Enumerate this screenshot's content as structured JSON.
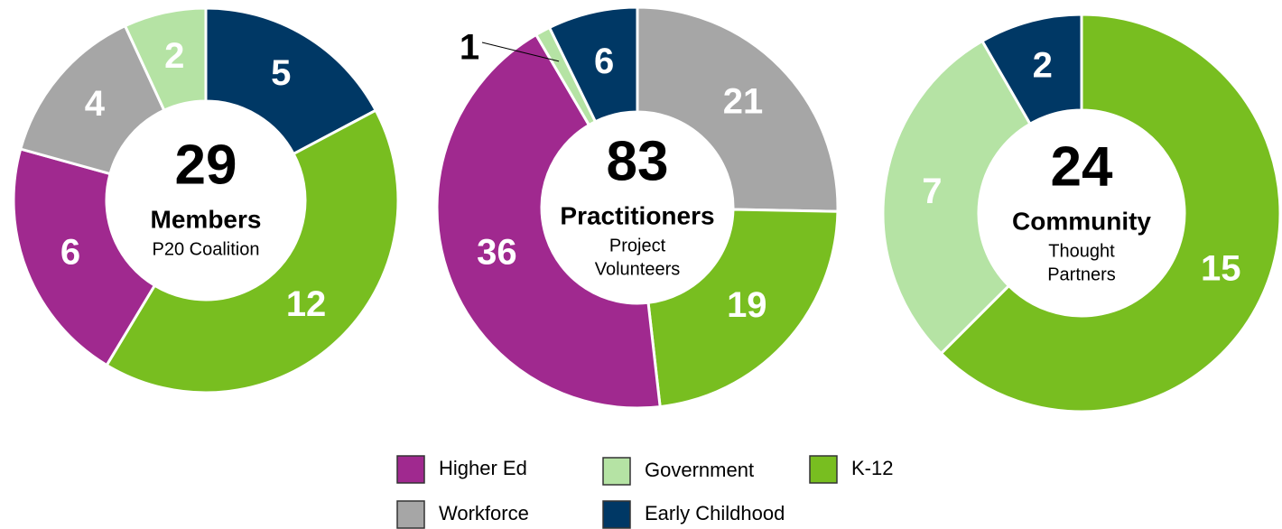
{
  "chart_data": [
    {
      "type": "donut",
      "total": 29,
      "title": "Members",
      "subtitle": [
        "P20 Coalition"
      ],
      "categories": [
        "Early Childhood",
        "K-12",
        "Higher Ed",
        "Workforce",
        "Government"
      ],
      "values": [
        5,
        12,
        6,
        4,
        2
      ],
      "colors": [
        "#003865",
        "#78be20",
        "#a0298f",
        "#a6a6a6",
        "#b5e3a4"
      ]
    },
    {
      "type": "donut",
      "total": 83,
      "title": "Practitioners",
      "subtitle": [
        "Project",
        "Volunteers"
      ],
      "categories": [
        "Workforce",
        "K-12",
        "Higher Ed",
        "Government",
        "Early Childhood"
      ],
      "values": [
        21,
        19,
        36,
        1,
        6
      ],
      "colors": [
        "#a6a6a6",
        "#78be20",
        "#a0298f",
        "#b5e3a4",
        "#003865"
      ]
    },
    {
      "type": "donut",
      "total": 24,
      "title": "Community",
      "subtitle": [
        "Thought",
        "Partners"
      ],
      "categories": [
        "K-12",
        "Government",
        "Early Childhood"
      ],
      "values": [
        15,
        7,
        2
      ],
      "colors": [
        "#78be20",
        "#b5e3a4",
        "#003865"
      ]
    }
  ],
  "legend": [
    {
      "name": "Higher Ed",
      "color": "#a0298f"
    },
    {
      "name": "Government",
      "color": "#b5e3a4"
    },
    {
      "name": "K-12",
      "color": "#78be20"
    },
    {
      "name": "Workforce",
      "color": "#a6a6a6"
    },
    {
      "name": "Early Childhood",
      "color": "#003865"
    }
  ]
}
